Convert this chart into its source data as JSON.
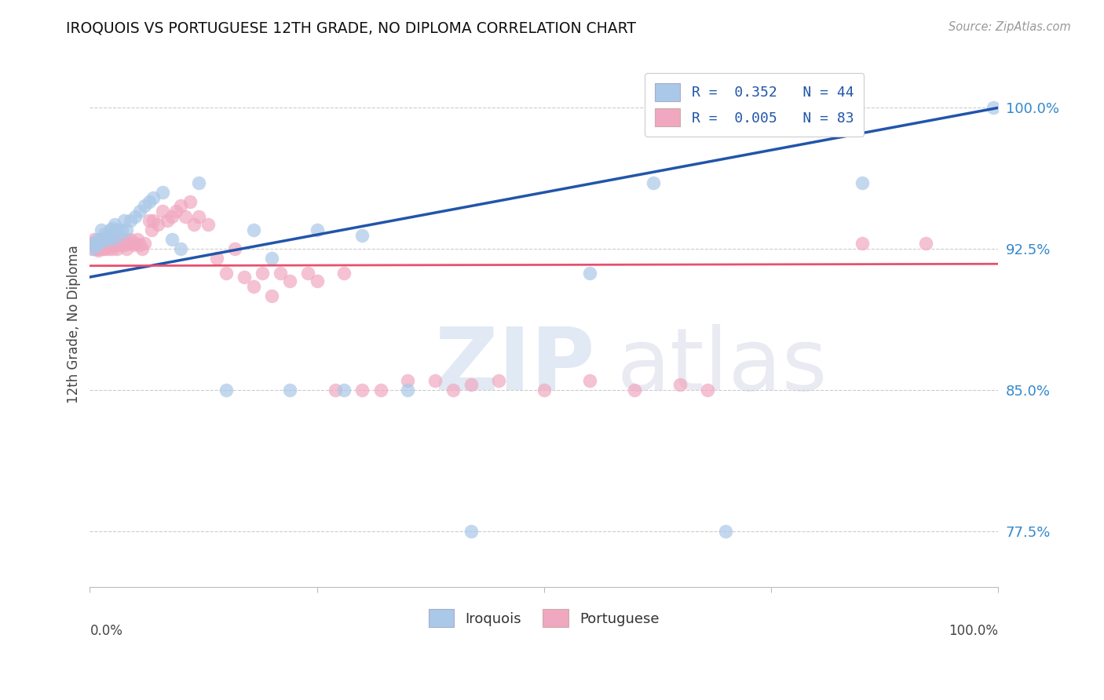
{
  "title": "IROQUOIS VS PORTUGUESE 12TH GRADE, NO DIPLOMA CORRELATION CHART",
  "source": "Source: ZipAtlas.com",
  "ylabel": "12th Grade, No Diploma",
  "ytick_labels": [
    "77.5%",
    "85.0%",
    "92.5%",
    "100.0%"
  ],
  "ytick_values": [
    0.775,
    0.85,
    0.925,
    1.0
  ],
  "iroquois_color": "#aac8e8",
  "portuguese_color": "#f0a8c0",
  "iroquois_edge": "#88aacc",
  "portuguese_edge": "#e08090",
  "iroquois_line_color": "#2255aa",
  "portuguese_line_color": "#e85070",
  "legend_label_blue": "R =  0.352   N = 44",
  "legend_label_pink": "R =  0.005   N = 83",
  "bottom_label_blue": "Iroquois",
  "bottom_label_pink": "Portuguese",
  "iroquois_x": [
    0.002,
    0.005,
    0.007,
    0.008,
    0.01,
    0.012,
    0.013,
    0.015,
    0.016,
    0.018,
    0.02,
    0.022,
    0.024,
    0.025,
    0.027,
    0.03,
    0.032,
    0.035,
    0.038,
    0.04,
    0.045,
    0.05,
    0.055,
    0.06,
    0.065,
    0.07,
    0.08,
    0.09,
    0.1,
    0.12,
    0.15,
    0.18,
    0.2,
    0.22,
    0.25,
    0.28,
    0.3,
    0.35,
    0.42,
    0.55,
    0.62,
    0.7,
    0.85,
    0.995
  ],
  "iroquois_y": [
    0.925,
    0.928,
    0.927,
    0.93,
    0.928,
    0.93,
    0.935,
    0.93,
    0.933,
    0.93,
    0.932,
    0.935,
    0.93,
    0.936,
    0.938,
    0.935,
    0.932,
    0.935,
    0.94,
    0.935,
    0.94,
    0.942,
    0.945,
    0.948,
    0.95,
    0.952,
    0.955,
    0.93,
    0.925,
    0.96,
    0.85,
    0.935,
    0.92,
    0.85,
    0.935,
    0.85,
    0.932,
    0.85,
    0.775,
    0.912,
    0.96,
    0.775,
    0.96,
    1.0
  ],
  "portuguese_x": [
    0.002,
    0.004,
    0.005,
    0.006,
    0.007,
    0.008,
    0.009,
    0.01,
    0.01,
    0.012,
    0.012,
    0.013,
    0.014,
    0.015,
    0.016,
    0.017,
    0.018,
    0.019,
    0.02,
    0.02,
    0.022,
    0.023,
    0.025,
    0.025,
    0.027,
    0.028,
    0.03,
    0.03,
    0.032,
    0.035,
    0.036,
    0.038,
    0.04,
    0.04,
    0.042,
    0.045,
    0.048,
    0.05,
    0.052,
    0.055,
    0.058,
    0.06,
    0.065,
    0.068,
    0.07,
    0.075,
    0.08,
    0.085,
    0.09,
    0.095,
    0.1,
    0.105,
    0.11,
    0.115,
    0.12,
    0.13,
    0.14,
    0.15,
    0.16,
    0.17,
    0.18,
    0.19,
    0.2,
    0.21,
    0.22,
    0.24,
    0.25,
    0.27,
    0.28,
    0.3,
    0.32,
    0.35,
    0.38,
    0.4,
    0.42,
    0.45,
    0.5,
    0.55,
    0.6,
    0.65,
    0.68,
    0.85,
    0.92
  ],
  "portuguese_y": [
    0.928,
    0.925,
    0.93,
    0.927,
    0.925,
    0.928,
    0.924,
    0.925,
    0.928,
    0.927,
    0.928,
    0.93,
    0.925,
    0.928,
    0.925,
    0.927,
    0.93,
    0.927,
    0.925,
    0.928,
    0.927,
    0.928,
    0.925,
    0.93,
    0.928,
    0.927,
    0.925,
    0.928,
    0.927,
    0.93,
    0.928,
    0.927,
    0.93,
    0.925,
    0.928,
    0.93,
    0.927,
    0.928,
    0.93,
    0.927,
    0.925,
    0.928,
    0.94,
    0.935,
    0.94,
    0.938,
    0.945,
    0.94,
    0.942,
    0.945,
    0.948,
    0.942,
    0.95,
    0.938,
    0.942,
    0.938,
    0.92,
    0.912,
    0.925,
    0.91,
    0.905,
    0.912,
    0.9,
    0.912,
    0.908,
    0.912,
    0.908,
    0.85,
    0.912,
    0.85,
    0.85,
    0.855,
    0.855,
    0.85,
    0.853,
    0.855,
    0.85,
    0.855,
    0.85,
    0.853,
    0.85,
    0.928,
    0.928
  ]
}
